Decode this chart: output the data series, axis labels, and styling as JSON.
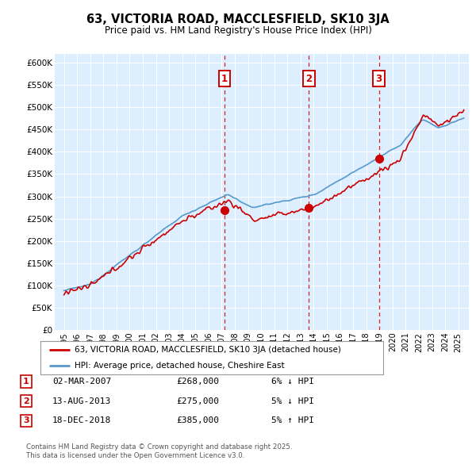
{
  "title": "63, VICTORIA ROAD, MACCLESFIELD, SK10 3JA",
  "subtitle": "Price paid vs. HM Land Registry's House Price Index (HPI)",
  "background_color": "#ffffff",
  "plot_bg_color": "#ddeeff",
  "ylim": [
    0,
    620000
  ],
  "yticks": [
    0,
    50000,
    100000,
    150000,
    200000,
    250000,
    300000,
    350000,
    400000,
    450000,
    500000,
    550000,
    600000
  ],
  "ytick_labels": [
    "£0",
    "£50K",
    "£100K",
    "£150K",
    "£200K",
    "£250K",
    "£300K",
    "£350K",
    "£400K",
    "£450K",
    "£500K",
    "£550K",
    "£600K"
  ],
  "hpi_color": "#5599cc",
  "price_color": "#cc0000",
  "sale_marker_color": "#cc0000",
  "vline_color": "#cc0000",
  "annotation_box_color": "#cc0000",
  "transactions": [
    {
      "date": "02-MAR-2007",
      "price": 268000,
      "label": "1",
      "pct": "6%",
      "dir": "↓"
    },
    {
      "date": "13-AUG-2013",
      "price": 275000,
      "label": "2",
      "pct": "5%",
      "dir": "↓"
    },
    {
      "date": "18-DEC-2018",
      "price": 385000,
      "label": "3",
      "pct": "5%",
      "dir": "↑"
    }
  ],
  "footer": "Contains HM Land Registry data © Crown copyright and database right 2025.\nThis data is licensed under the Open Government Licence v3.0.",
  "legend_line1": "63, VICTORIA ROAD, MACCLESFIELD, SK10 3JA (detached house)",
  "legend_line2": "HPI: Average price, detached house, Cheshire East",
  "xstart": 1995,
  "xend": 2025,
  "xlim_left": 1994.3,
  "xlim_right": 2025.8
}
